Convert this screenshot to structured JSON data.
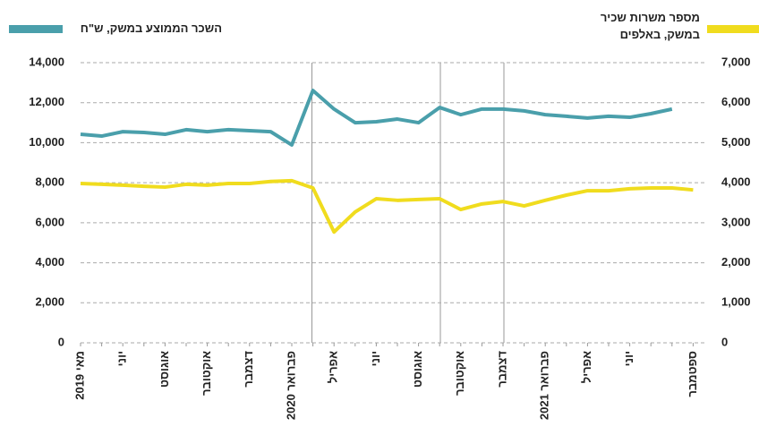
{
  "chart_data": {
    "type": "line",
    "categories": [
      "מאי 2019",
      null,
      "יוני",
      null,
      "אוגוסט",
      null,
      "אוקטובר",
      null,
      "דצמבר",
      null,
      "פברואר 2020",
      null,
      "אפריל",
      null,
      "יוני",
      null,
      "אוגוסט",
      null,
      "אוקטובר",
      null,
      "דצמבר",
      null,
      "פברואר 2021",
      null,
      "אפריל",
      null,
      "יוני",
      null,
      null,
      "ספטמבר"
    ],
    "series": [
      {
        "name": "השכר הממוצע במשק, ש\"ח",
        "color": "#4a9fab",
        "values": [
          10420,
          10330,
          10550,
          10510,
          10420,
          10650,
          10550,
          10650,
          10600,
          10550,
          9890,
          12610,
          11680,
          11000,
          11050,
          11180,
          11000,
          11760,
          11400,
          11680,
          11680,
          11590,
          11400,
          11320,
          11230,
          11320,
          11270,
          11450,
          11680,
          null
        ]
      },
      {
        "name": "מספר משרות שכיר במשק, באלפים",
        "color": "#f0dc1e",
        "axis": "y2",
        "values": [
          3980,
          3960,
          3940,
          3910,
          3890,
          3960,
          3940,
          3980,
          3980,
          4030,
          4050,
          3870,
          2770,
          3270,
          3600,
          3560,
          3580,
          3600,
          3330,
          3470,
          3530,
          3420,
          3560,
          3690,
          3800,
          3800,
          3850,
          3870,
          3870,
          3820
        ]
      }
    ],
    "ylim": [
      0,
      14000
    ],
    "yticks": [
      0,
      {
        "value": 2000,
        "label": "2,000"
      },
      {
        "value": 4000,
        "label": "4,000"
      },
      {
        "value": 6000,
        "label": "6,000"
      },
      {
        "value": 8000,
        "label": "8,000"
      },
      {
        "value": 10000,
        "label": "10,000"
      },
      {
        "value": 12000,
        "label": "12,000"
      },
      {
        "value": 14000,
        "label": "14,000"
      }
    ],
    "y2lim": [
      0,
      7000
    ],
    "y2ticks": [
      0,
      {
        "value": 1000,
        "label": "1,000"
      },
      {
        "value": 2000,
        "label": "2,000"
      },
      {
        "value": 3000,
        "label": "3,000"
      },
      {
        "value": 4000,
        "label": "4,000"
      },
      {
        "value": 5000,
        "label": "5,000"
      },
      {
        "value": 6000,
        "label": "6,000"
      },
      {
        "value": 7000,
        "label": "7,000"
      }
    ],
    "grid": true
  }
}
